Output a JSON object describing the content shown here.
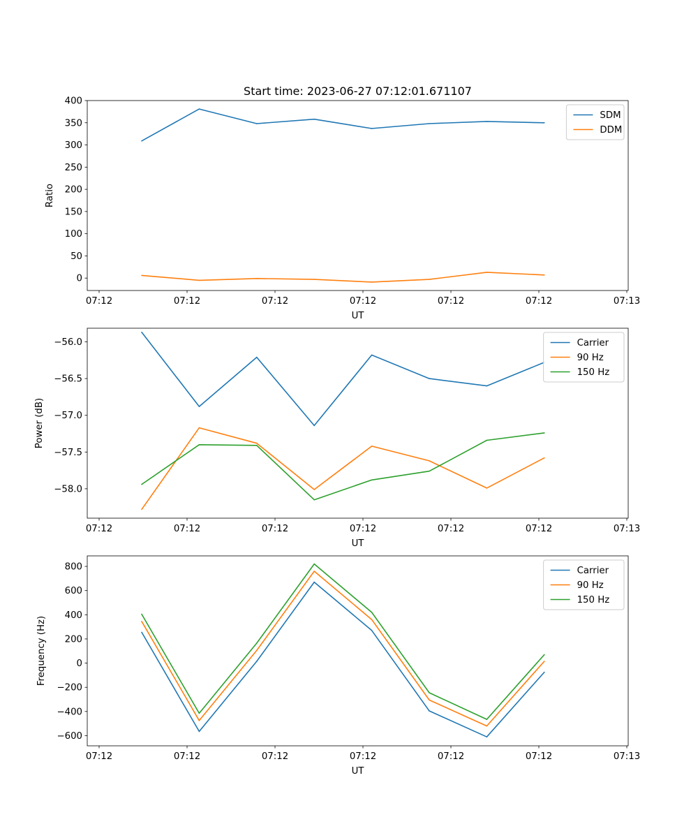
{
  "figure": {
    "title": "Start time: 2023-06-27 07:12:01.671107"
  },
  "chart_data": [
    {
      "type": "line",
      "title": "Start time: 2023-06-27 07:12:01.671107",
      "xlabel": "UT",
      "ylabel": "Ratio",
      "x_tick_labels": [
        "07:12",
        "07:12",
        "07:12",
        "07:12",
        "07:12",
        "07:12",
        "07:13"
      ],
      "y_ticks": [
        0,
        50,
        100,
        150,
        200,
        250,
        300,
        350,
        400
      ],
      "ylim": [
        -28,
        400
      ],
      "x_points": 8,
      "legend": "top-right",
      "grid": false,
      "series": [
        {
          "name": "SDM",
          "color": "#1f77b4",
          "values": [
            309,
            381,
            348,
            358,
            337,
            348,
            353,
            350
          ]
        },
        {
          "name": "DDM",
          "color": "#ff7f0e",
          "values": [
            6,
            -5,
            -1,
            -3,
            -9,
            -3,
            13,
            7
          ]
        }
      ]
    },
    {
      "type": "line",
      "xlabel": "UT",
      "ylabel": "Power (dB)",
      "x_tick_labels": [
        "07:12",
        "07:12",
        "07:12",
        "07:12",
        "07:12",
        "07:12",
        "07:13"
      ],
      "y_ticks": [
        -56.0,
        -56.5,
        -57.0,
        -57.5,
        -58.0
      ],
      "y_tick_labels": [
        "−56.0",
        "−56.5",
        "−57.0",
        "−57.5",
        "−58.0"
      ],
      "ylim": [
        -58.4,
        -55.815
      ],
      "x_points": 8,
      "legend": "top-right",
      "grid": false,
      "series": [
        {
          "name": "Carrier",
          "color": "#1f77b4",
          "values": [
            -55.87,
            -56.88,
            -56.21,
            -57.14,
            -56.18,
            -56.5,
            -56.6,
            -56.28
          ]
        },
        {
          "name": "90 Hz",
          "color": "#ff7f0e",
          "values": [
            -58.28,
            -57.17,
            -57.38,
            -58.01,
            -57.42,
            -57.62,
            -57.99,
            -57.58
          ]
        },
        {
          "name": "150 Hz",
          "color": "#2ca02c",
          "values": [
            -57.94,
            -57.4,
            -57.41,
            -58.15,
            -57.88,
            -57.76,
            -57.34,
            -57.24
          ]
        }
      ]
    },
    {
      "type": "line",
      "xlabel": "UT",
      "ylabel": "Frequency (Hz)",
      "x_tick_labels": [
        "07:12",
        "07:12",
        "07:12",
        "07:12",
        "07:12",
        "07:12",
        "07:13"
      ],
      "y_ticks": [
        -600,
        -400,
        -200,
        0,
        200,
        400,
        600,
        800
      ],
      "y_tick_labels": [
        "−600",
        "−400",
        "−200",
        "0",
        "200",
        "400",
        "600",
        "800"
      ],
      "ylim": [
        -684,
        887
      ],
      "x_points": 8,
      "legend": "top-right",
      "grid": false,
      "series": [
        {
          "name": "Carrier",
          "color": "#1f77b4",
          "values": [
            255,
            -565,
            15,
            670,
            270,
            -395,
            -610,
            -75
          ]
        },
        {
          "name": "90 Hz",
          "color": "#ff7f0e",
          "values": [
            345,
            -475,
            105,
            760,
            360,
            -305,
            -520,
            15
          ]
        },
        {
          "name": "150 Hz",
          "color": "#2ca02c",
          "values": [
            405,
            -415,
            165,
            820,
            420,
            -245,
            -465,
            70
          ]
        }
      ]
    }
  ]
}
